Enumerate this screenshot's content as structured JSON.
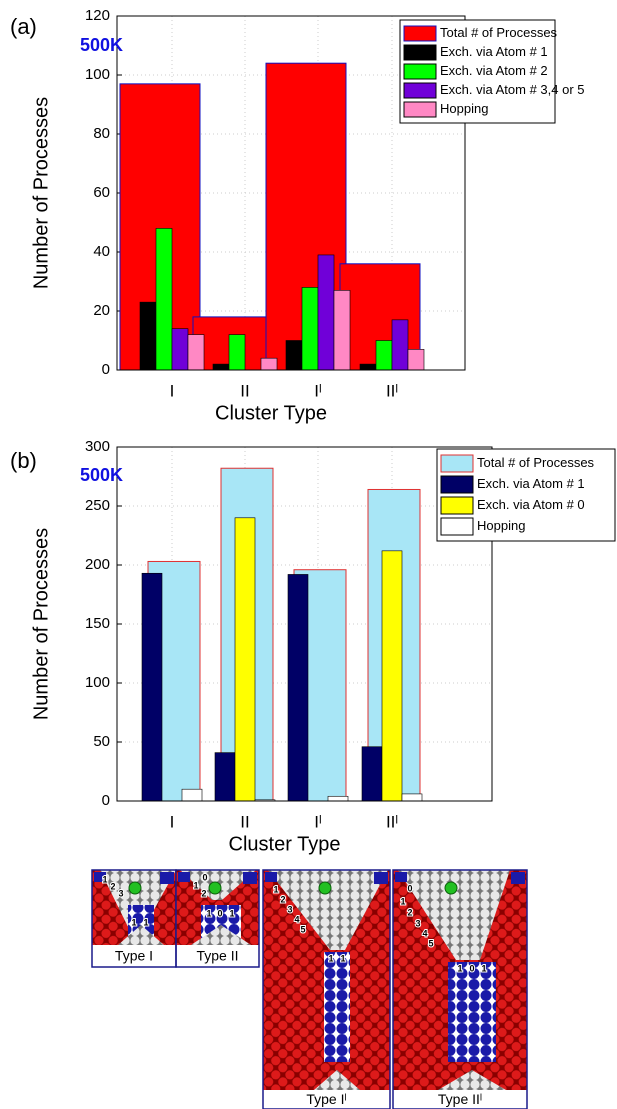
{
  "chart_data": [
    {
      "type": "bar",
      "panel_label": "(a)",
      "annotation": "500K",
      "xlabel": "Cluster Type",
      "ylabel": "Number of Processes",
      "categories": [
        "I",
        "II",
        "Iˡ",
        "IIˡ"
      ],
      "ylim": [
        0,
        120
      ],
      "yticks": [
        0,
        20,
        40,
        60,
        80,
        100,
        120
      ],
      "grid": true,
      "legend": "upper right",
      "series": [
        {
          "name": "Total # of Processes",
          "color": "#ff0000",
          "values": [
            97,
            18,
            104,
            36
          ]
        },
        {
          "name": "Exch. via Atom # 1",
          "color": "#000000",
          "values": [
            23,
            2,
            10,
            2
          ]
        },
        {
          "name": "Exch. via Atom # 2",
          "color": "#00ff00",
          "values": [
            48,
            12,
            28,
            10
          ]
        },
        {
          "name": "Exch. via Atom # 3,4 or 5",
          "color": "#7000d8",
          "values": [
            14,
            0,
            39,
            17
          ]
        },
        {
          "name": "Hopping",
          "color": "#ff88c4",
          "values": [
            12,
            4,
            27,
            7
          ]
        }
      ]
    },
    {
      "type": "bar",
      "panel_label": "(b)",
      "annotation": "500K",
      "xlabel": "Cluster Type",
      "ylabel": "Number of Processes",
      "categories": [
        "I",
        "II",
        "Iˡ",
        "IIˡ"
      ],
      "ylim": [
        0,
        300
      ],
      "yticks": [
        0,
        50,
        100,
        150,
        200,
        250,
        300
      ],
      "grid": true,
      "legend": "upper right",
      "series": [
        {
          "name": "Total # of Processes",
          "color": "#a8e6f6",
          "values": [
            203,
            282,
            196,
            264
          ]
        },
        {
          "name": "Exch. via Atom # 1",
          "color": "#000066",
          "values": [
            193,
            41,
            192,
            46
          ]
        },
        {
          "name": "Exch. via Atom # 0",
          "color": "#ffff00",
          "values": [
            0,
            240,
            0,
            212
          ]
        },
        {
          "name": "Hopping",
          "color": "#ffffff",
          "values": [
            10,
            1,
            4,
            6
          ]
        }
      ]
    }
  ],
  "panels": [
    {
      "label": "Type I",
      "atoms": [
        "1",
        "2",
        "3",
        "1",
        "1"
      ]
    },
    {
      "label": "Type II",
      "atoms": [
        "0",
        "1",
        "2",
        "1",
        "0",
        "1"
      ]
    },
    {
      "label": "Type Iˡ",
      "atoms": [
        "1",
        "2",
        "3",
        "4",
        "5",
        "1",
        "1"
      ]
    },
    {
      "label": "Type IIˡ",
      "atoms": [
        "0",
        "1",
        "2",
        "3",
        "4",
        "5",
        "1",
        "0",
        "1"
      ]
    }
  ]
}
